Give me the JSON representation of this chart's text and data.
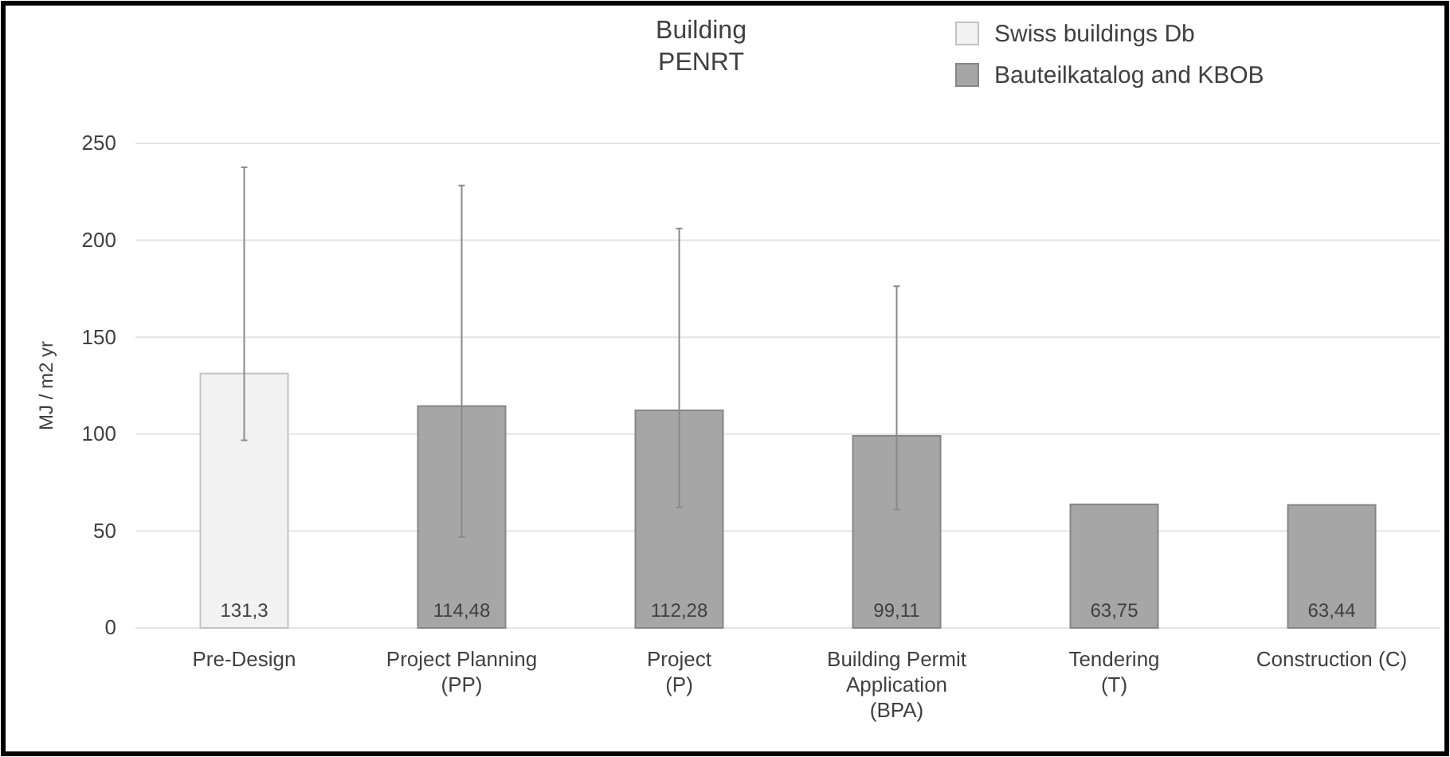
{
  "chart_data": {
    "type": "bar",
    "title": "Building\nPENRT",
    "ylabel": "MJ / m2 yr",
    "categories": [
      "Pre-Design",
      "Project Planning\n(PP)",
      "Project\n(P)",
      "Building Permit\nApplication\n(BPA)",
      "Tendering\n(T)",
      "Construction (C)"
    ],
    "series": [
      {
        "name": "Swiss buildings Db",
        "color": "#f2f2f2",
        "values": [
          131.3,
          null,
          null,
          null,
          null,
          null
        ],
        "errors": [
          [
            96.8,
            237.7
          ],
          null,
          null,
          null,
          null,
          null
        ],
        "value_labels": [
          "131,3",
          null,
          null,
          null,
          null,
          null
        ]
      },
      {
        "name": "Bauteilkatalog and KBOB",
        "color": "#a6a6a6",
        "values": [
          null,
          114.48,
          112.28,
          99.11,
          63.75,
          63.44
        ],
        "errors": [
          null,
          [
            46.9,
            228.3
          ],
          [
            62.2,
            206.1
          ],
          [
            61.1,
            176.3
          ],
          null,
          null
        ],
        "value_labels": [
          null,
          "114,48",
          "112,28",
          "99,11",
          "63,75",
          "63,44"
        ]
      }
    ],
    "ylim": [
      0,
      250
    ],
    "yticks": [
      0,
      50,
      100,
      150,
      200,
      250
    ],
    "grid": "y",
    "legend": "top right"
  }
}
